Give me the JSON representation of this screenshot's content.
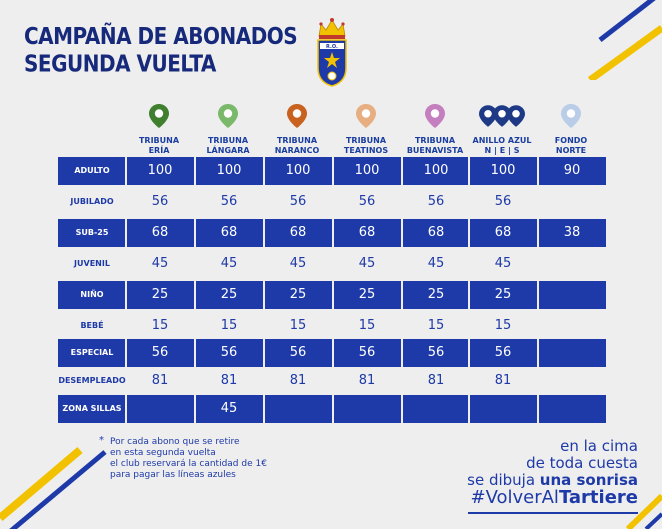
{
  "title_lines": [
    "CAMPAÑA DE ABONADOS",
    "SEGUNDA VUELTA"
  ],
  "colors": {
    "navy": "#1e3aa8",
    "yellow": "#f2c200",
    "background": "#eeeeee"
  },
  "columns": [
    {
      "label": "TRIBUNA\nERÍA",
      "pin_color": "#3f7f2e",
      "pin_icon": "map-pin-icon"
    },
    {
      "label": "TRIBUNA\nLÁNGARA",
      "pin_color": "#7ab86a",
      "pin_icon": "map-pin-icon"
    },
    {
      "label": "TRIBUNA\nNARANCO",
      "pin_color": "#c9621e",
      "pin_icon": "map-pin-icon"
    },
    {
      "label": "TRIBUNA\nTEATINOS",
      "pin_color": "#e7ae82",
      "pin_icon": "map-pin-icon"
    },
    {
      "label": "TRIBUNA\nBUENAVISTA",
      "pin_color": "#c47fbf",
      "pin_icon": "map-pin-icon"
    },
    {
      "label": "ANILLO AZUL\nN | E | S",
      "pin_color": "#1e3a86",
      "pin_icon": "map-pin-icon"
    },
    {
      "label": "FONDO\nNORTE",
      "pin_color": "#b9cde8",
      "pin_icon": "map-pin-icon"
    }
  ],
  "rows": [
    {
      "label": "ADULTO",
      "values": [
        "100",
        "100",
        "100",
        "100",
        "100",
        "100",
        "90"
      ]
    },
    {
      "label": "JUBILADO",
      "values": [
        "56",
        "56",
        "56",
        "56",
        "56",
        "56",
        ""
      ]
    },
    {
      "label": "SUB-25",
      "values": [
        "68",
        "68",
        "68",
        "68",
        "68",
        "68",
        "38"
      ]
    },
    {
      "label": "JUVENIL",
      "values": [
        "45",
        "45",
        "45",
        "45",
        "45",
        "45",
        ""
      ]
    },
    {
      "label": "NIÑO",
      "values": [
        "25",
        "25",
        "25",
        "25",
        "25",
        "25",
        ""
      ]
    },
    {
      "label": "BEBÉ",
      "values": [
        "15",
        "15",
        "15",
        "15",
        "15",
        "15",
        ""
      ]
    },
    {
      "label": "ESPECIAL",
      "values": [
        "56",
        "56",
        "56",
        "56",
        "56",
        "56",
        ""
      ]
    },
    {
      "label": "DESEMPLEADO",
      "values": [
        "81",
        "81",
        "81",
        "81",
        "81",
        "81",
        ""
      ]
    },
    {
      "label": "ZONA SILLAS",
      "values": [
        "",
        "45",
        "",
        "",
        "",
        "",
        ""
      ]
    }
  ],
  "footnote": {
    "star": "*",
    "lines": [
      "Por cada abono que se retire",
      "en esta segunda vuelta",
      "el club reservará la cantidad de 1€",
      "para pagar las líneas azules"
    ]
  },
  "slogan": {
    "line1": "en la cima",
    "line2": "de toda cuesta",
    "line3_normal": "se dibuja ",
    "line3_bold": "una sonrisa"
  },
  "hashtag": {
    "normal": "#VolverAl",
    "bold": "Tartiere"
  },
  "crest_text": "R.O."
}
